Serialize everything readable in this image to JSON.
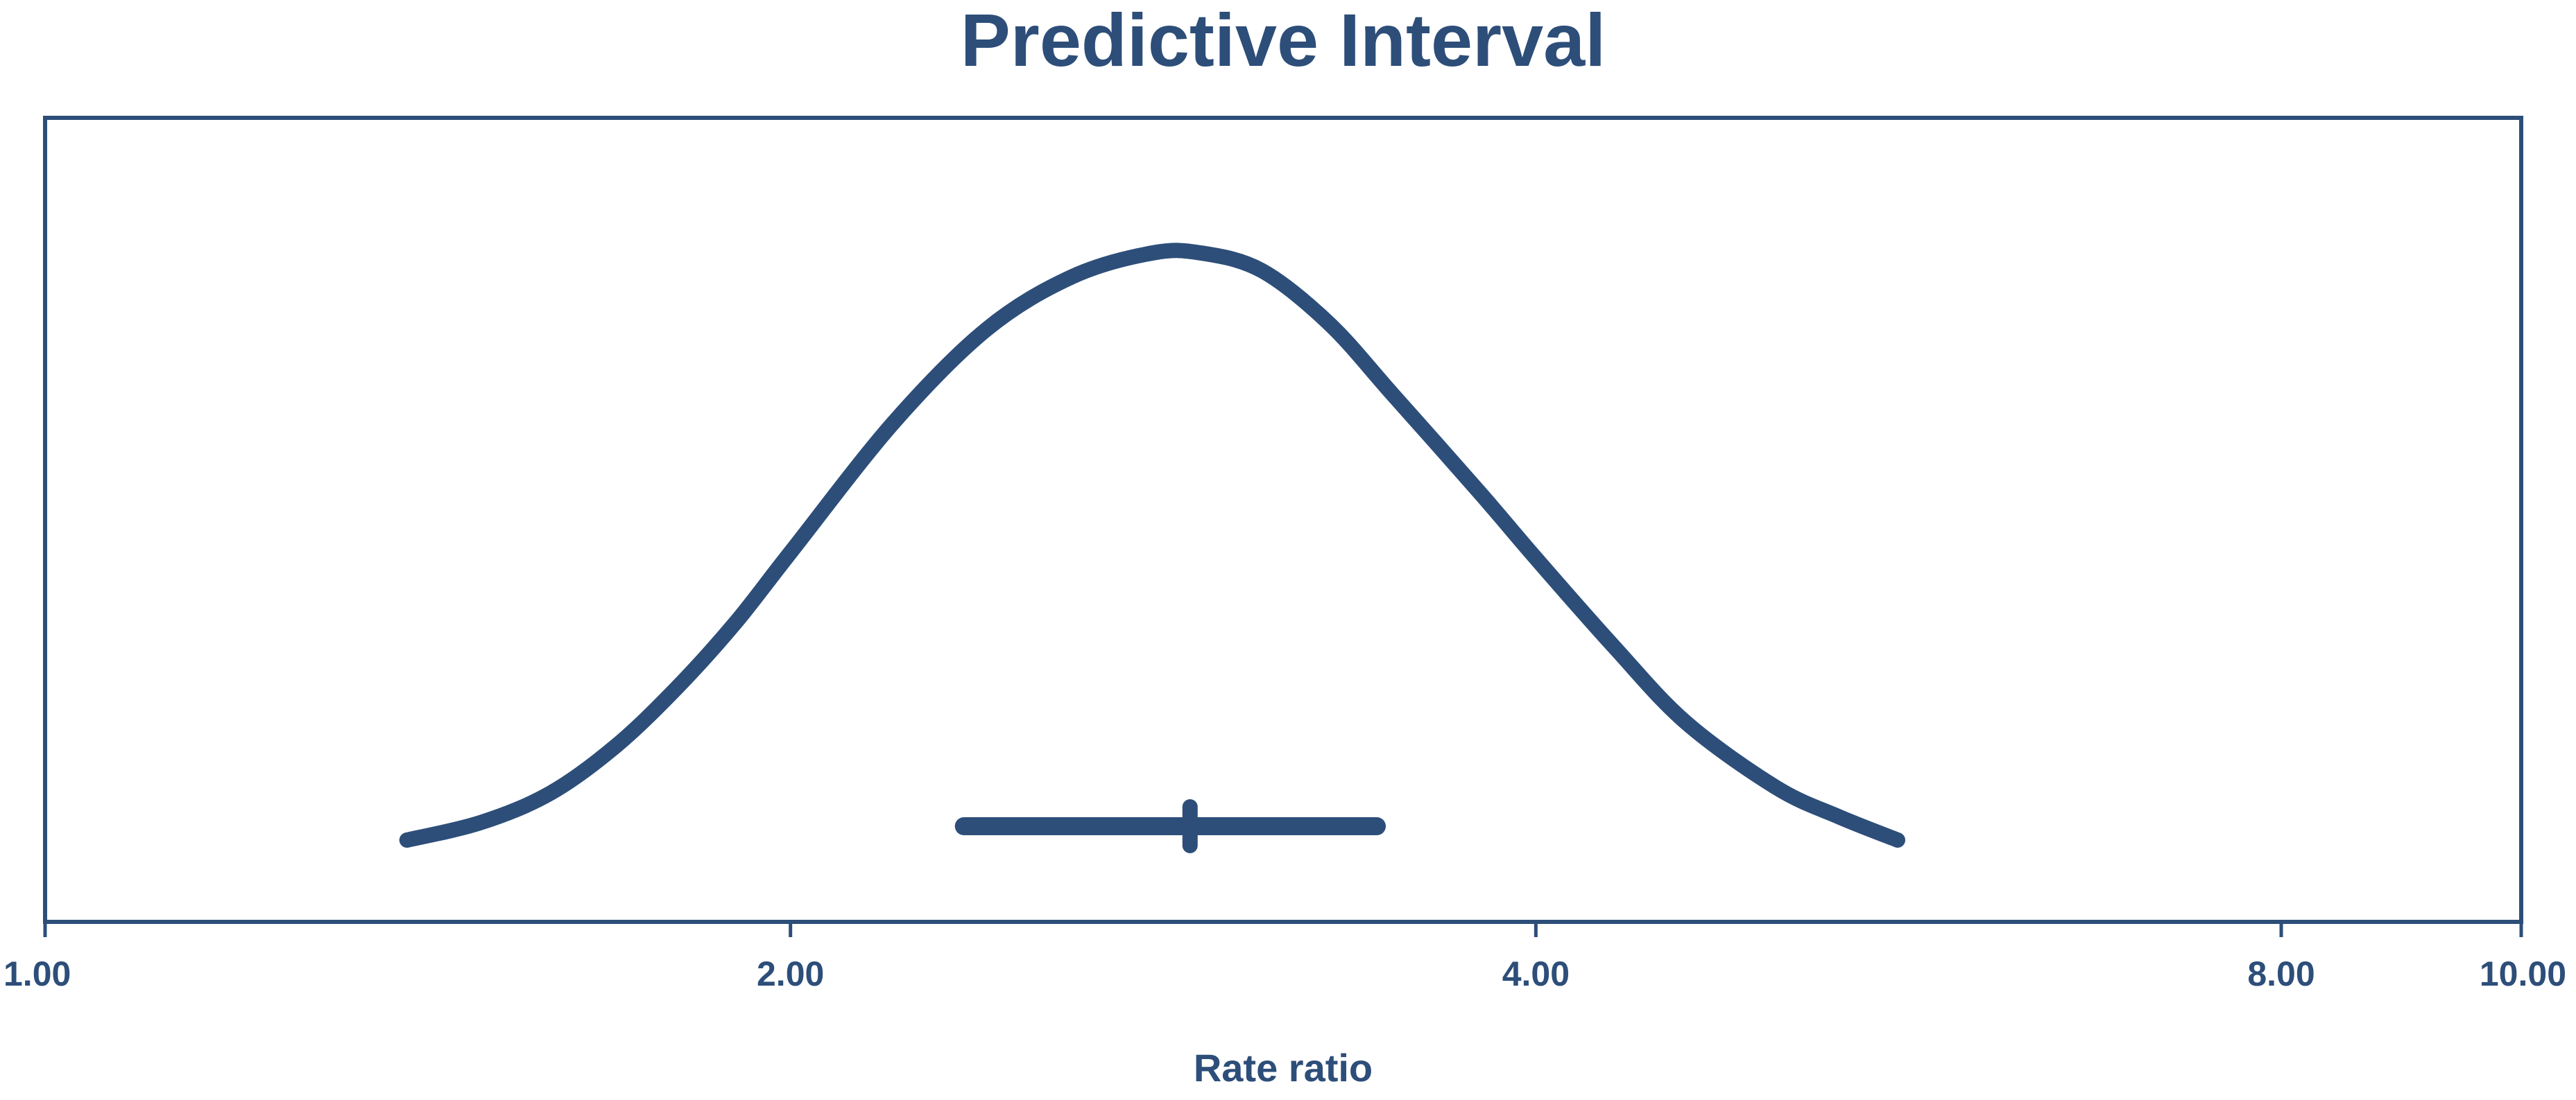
{
  "chart_data": {
    "type": "line",
    "title": "Predictive Interval",
    "xlabel": "Rate ratio",
    "ylabel": "",
    "x_scale": "log",
    "xlim": [
      1.0,
      10.0
    ],
    "grid": false,
    "legend": "none",
    "x_ticks": [
      {
        "value": 1.0,
        "label": "1.00"
      },
      {
        "value": 2.0,
        "label": "2.00"
      },
      {
        "value": 4.0,
        "label": "4.00"
      },
      {
        "value": 8.0,
        "label": "8.00"
      },
      {
        "value": 10.0,
        "label": "10.00"
      }
    ],
    "series": [
      {
        "kind": "density-curve",
        "x": [
          1.4,
          1.5,
          1.6,
          1.7,
          1.8,
          1.9,
          2.0,
          2.2,
          2.4,
          2.6,
          2.8,
          2.93,
          3.1,
          3.3,
          3.5,
          3.8,
          4.0,
          4.3,
          4.6,
          5.0,
          5.3,
          5.6
        ],
        "y": [
          0.0,
          0.03,
          0.08,
          0.16,
          0.26,
          0.37,
          0.49,
          0.71,
          0.87,
          0.96,
          1.0,
          1.0,
          0.97,
          0.88,
          0.76,
          0.59,
          0.48,
          0.33,
          0.2,
          0.09,
          0.04,
          0.0
        ]
      }
    ],
    "interval": {
      "point_estimate": 2.9,
      "lower": 2.35,
      "upper": 3.45
    },
    "colors": {
      "primary": "#2d4e79",
      "background": "#ffffff"
    }
  }
}
